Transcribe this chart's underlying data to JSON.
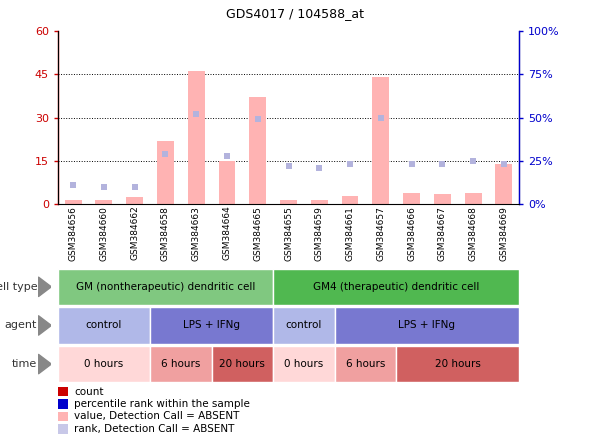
{
  "title": "GDS4017 / 104588_at",
  "samples": [
    "GSM384656",
    "GSM384660",
    "GSM384662",
    "GSM384658",
    "GSM384663",
    "GSM384664",
    "GSM384665",
    "GSM384655",
    "GSM384659",
    "GSM384661",
    "GSM384657",
    "GSM384666",
    "GSM384667",
    "GSM384668",
    "GSM384669"
  ],
  "bar_values": [
    1.5,
    1.5,
    2.5,
    22,
    46,
    15,
    37,
    1.5,
    1.5,
    3.0,
    44,
    4.0,
    3.5,
    4.0,
    14
  ],
  "rank_values": [
    11,
    10,
    10,
    29,
    52,
    28,
    49,
    22,
    21,
    23,
    50,
    23,
    23,
    25,
    23
  ],
  "y_left_ticks": [
    0,
    15,
    30,
    45,
    60
  ],
  "y_right_ticks": [
    0,
    25,
    50,
    75,
    100
  ],
  "y_right_labels": [
    "0%",
    "25%",
    "50%",
    "75%",
    "100%"
  ],
  "cell_type_row": [
    {
      "label": "GM (nontherapeutic) dendritic cell",
      "start": 0,
      "end": 7,
      "color": "#80c880"
    },
    {
      "label": "GM4 (therapeutic) dendritic cell",
      "start": 7,
      "end": 15,
      "color": "#50b850"
    }
  ],
  "agent_row": [
    {
      "label": "control",
      "start": 0,
      "end": 3,
      "color": "#b0b8e8"
    },
    {
      "label": "LPS + IFNg",
      "start": 3,
      "end": 7,
      "color": "#7878d0"
    },
    {
      "label": "control",
      "start": 7,
      "end": 9,
      "color": "#b0b8e8"
    },
    {
      "label": "LPS + IFNg",
      "start": 9,
      "end": 15,
      "color": "#7878d0"
    }
  ],
  "time_row": [
    {
      "label": "0 hours",
      "start": 0,
      "end": 3,
      "color": "#ffd8d8"
    },
    {
      "label": "6 hours",
      "start": 3,
      "end": 5,
      "color": "#f0a0a0"
    },
    {
      "label": "20 hours",
      "start": 5,
      "end": 7,
      "color": "#d06060"
    },
    {
      "label": "0 hours",
      "start": 7,
      "end": 9,
      "color": "#ffd8d8"
    },
    {
      "label": "6 hours",
      "start": 9,
      "end": 11,
      "color": "#f0a0a0"
    },
    {
      "label": "20 hours",
      "start": 11,
      "end": 15,
      "color": "#d06060"
    }
  ],
  "bar_color_absent": "#ffb3b3",
  "rank_color_absent": "#b3b3dd",
  "ylabel_left_color": "#cc0000",
  "ylabel_right_color": "#0000cc",
  "bg_color": "#ffffff",
  "legend_colors": [
    "#cc0000",
    "#0000cc",
    "#ffb3b3",
    "#c8c8e8"
  ],
  "legend_labels": [
    "count",
    "percentile rank within the sample",
    "value, Detection Call = ABSENT",
    "rank, Detection Call = ABSENT"
  ]
}
